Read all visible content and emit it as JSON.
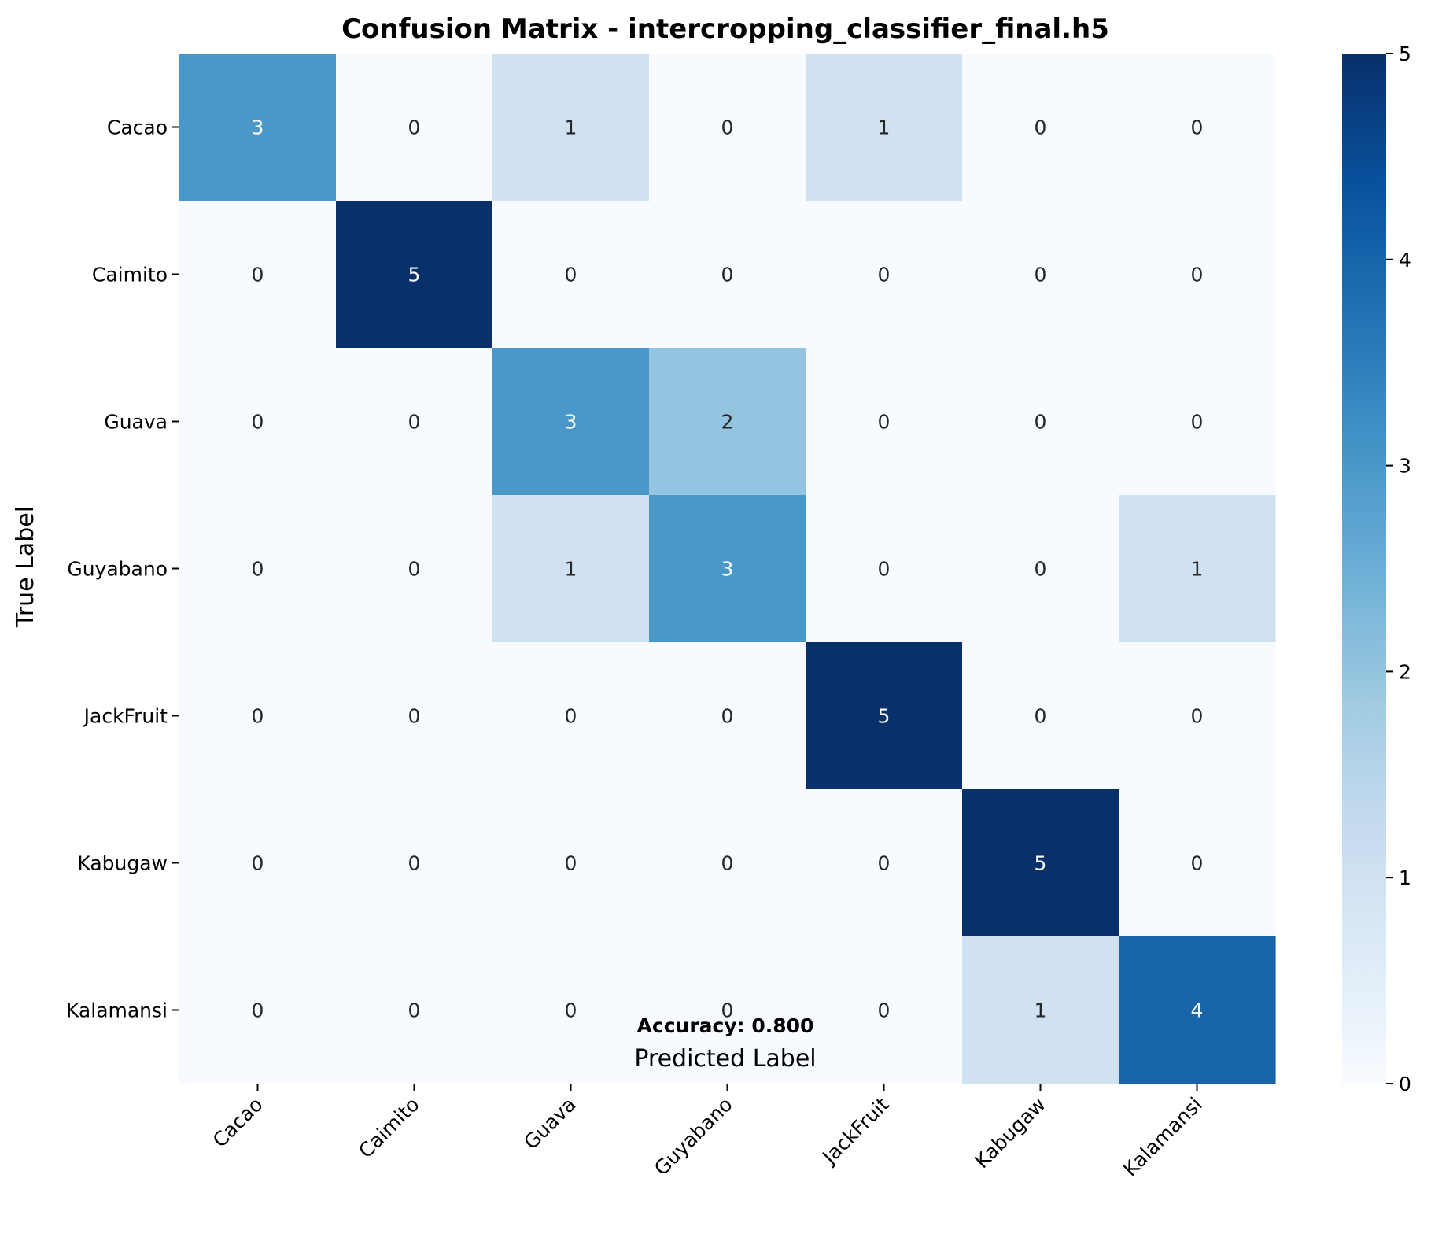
{
  "chart_data": {
    "type": "heatmap",
    "title": "Confusion Matrix - intercropping_classifier_final.h5",
    "xlabel": "Predicted Label",
    "ylabel": "True Label",
    "x_categories": [
      "Cacao",
      "Caimito",
      "Guava",
      "Guyabano",
      "JackFruit",
      "Kabugaw",
      "Kalamansi"
    ],
    "y_categories": [
      "Cacao",
      "Caimito",
      "Guava",
      "Guyabano",
      "JackFruit",
      "Kabugaw",
      "Kalamansi"
    ],
    "matrix": [
      [
        3,
        0,
        1,
        0,
        1,
        0,
        0
      ],
      [
        0,
        5,
        0,
        0,
        0,
        0,
        0
      ],
      [
        0,
        0,
        3,
        2,
        0,
        0,
        0
      ],
      [
        0,
        0,
        1,
        3,
        0,
        0,
        1
      ],
      [
        0,
        0,
        0,
        0,
        5,
        0,
        0
      ],
      [
        0,
        0,
        0,
        0,
        0,
        5,
        0
      ],
      [
        0,
        0,
        0,
        0,
        0,
        1,
        4
      ]
    ],
    "value_range": [
      0,
      5
    ],
    "colormap": "Blues",
    "colorbar_ticks": [
      0,
      1,
      2,
      3,
      4,
      5
    ],
    "annotation": "Accuracy: 0.800"
  }
}
